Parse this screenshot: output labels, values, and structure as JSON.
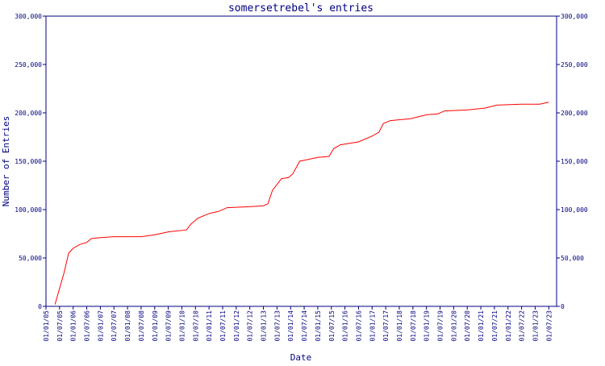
{
  "chart_data": {
    "type": "line",
    "title": "somersetrebel's entries",
    "x_label": "Date",
    "y_label": "Number of Entries",
    "x": [
      "01/05/05",
      "01/09/05",
      "01/11/05",
      "01/01/06",
      "01/04/06",
      "01/07/06",
      "01/09/06",
      "01/01/07",
      "01/07/07",
      "01/07/08",
      "01/01/09",
      "01/07/09",
      "01/03/10",
      "01/05/10",
      "01/08/10",
      "01/01/11",
      "01/05/11",
      "01/09/11",
      "01/07/12",
      "01/01/13",
      "01/03/13",
      "01/05/13",
      "01/09/13",
      "01/12/13",
      "01/02/14",
      "01/05/14",
      "01/09/14",
      "01/01/15",
      "01/06/15",
      "01/08/15",
      "01/11/15",
      "01/07/16",
      "01/01/17",
      "01/04/17",
      "01/06/17",
      "01/09/17",
      "01/06/18",
      "01/01/19",
      "01/06/19",
      "01/09/19",
      "01/07/20",
      "01/03/21",
      "01/08/21",
      "01/07/22",
      "01/03/23",
      "01/07/23"
    ],
    "series": [
      {
        "color": "#ff0000",
        "values": [
          2000,
          35000,
          55000,
          60000,
          64000,
          66000,
          70000,
          71000,
          72000,
          72000,
          74000,
          77000,
          79000,
          85000,
          91000,
          96000,
          98000,
          102000,
          103000,
          104000,
          106000,
          120000,
          132000,
          133000,
          137000,
          150000,
          152000,
          154000,
          155000,
          163000,
          167000,
          170000,
          176000,
          180000,
          189000,
          192000,
          194000,
          198000,
          199000,
          202000,
          203000,
          205000,
          208000,
          209000,
          209000,
          211000
        ]
      }
    ],
    "xlim": [
      "01/01/05",
      "15/10/23"
    ],
    "xticks": [
      "01/01/05",
      "01/07/05",
      "01/01/06",
      "01/07/06",
      "01/01/07",
      "01/07/07",
      "01/01/08",
      "01/07/08",
      "01/01/09",
      "01/07/09",
      "01/01/10",
      "01/07/10",
      "01/01/11",
      "01/07/11",
      "01/01/12",
      "01/07/12",
      "01/01/13",
      "01/07/13",
      "01/01/14",
      "01/07/14",
      "01/01/15",
      "01/07/15",
      "01/01/16",
      "01/07/16",
      "01/01/17",
      "01/07/17",
      "01/01/18",
      "01/07/18",
      "01/01/19",
      "01/07/19",
      "01/01/20",
      "01/07/20",
      "01/01/21",
      "01/07/21",
      "01/01/22",
      "01/07/22",
      "01/01/23",
      "01/07/23"
    ],
    "ylim": [
      0,
      300000
    ],
    "yticks": [
      0,
      {
        "value": 50000,
        "label": "50,000"
      },
      {
        "value": 100000,
        "label": "100,000"
      },
      {
        "value": 150000,
        "label": "150,000"
      },
      {
        "value": 200000,
        "label": "200,000"
      },
      {
        "value": 250000,
        "label": "250,000"
      },
      {
        "value": 300000,
        "label": "300,000"
      }
    ],
    "axis_color": "#000080"
  }
}
